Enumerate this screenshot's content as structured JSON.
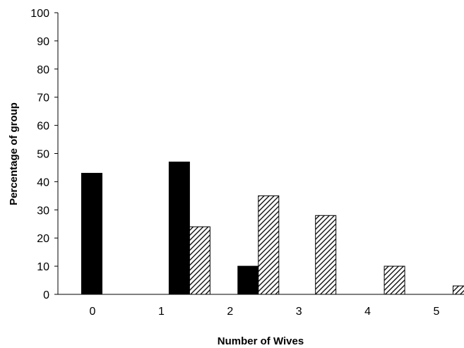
{
  "chart_data": {
    "type": "bar",
    "categories": [
      "0",
      "1",
      "2",
      "3",
      "4",
      "5"
    ],
    "series": [
      {
        "values": [
          43,
          47,
          10,
          0,
          0,
          0
        ],
        "color": "#000000",
        "pattern": "solid"
      },
      {
        "values": [
          0,
          24,
          35,
          28,
          10,
          3
        ],
        "color": "#bfbfbf",
        "pattern": "diagonal-hatch"
      }
    ],
    "xlabel": "Number of Wives",
    "ylabel": "Percentage of group",
    "ylim": [
      0,
      100
    ],
    "yticks": [
      "0",
      "10",
      "20",
      "30",
      "40",
      "50",
      "60",
      "70",
      "80",
      "90",
      "100"
    ],
    "grid": false,
    "legend": "none"
  }
}
